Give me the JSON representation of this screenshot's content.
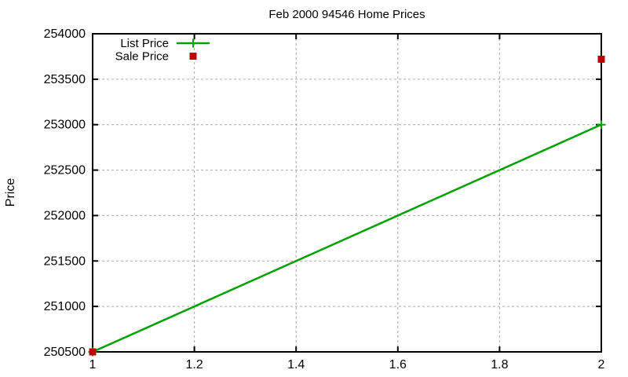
{
  "figure": {
    "background": "#ffffff"
  },
  "chart_data": {
    "type": "line",
    "title": "Feb 2000 94546 Home Prices",
    "xlabel": "",
    "ylabel": "Price",
    "xlim": [
      1,
      2
    ],
    "ylim": [
      250500,
      254000
    ],
    "xticks": {
      "values": [
        1,
        1.2,
        1.4,
        1.6,
        1.8,
        2
      ],
      "labels": [
        "1",
        "1.2",
        "1.4",
        "1.6",
        "1.8",
        "2"
      ]
    },
    "yticks": {
      "values": [
        250500,
        251000,
        251500,
        252000,
        252500,
        253000,
        253500,
        254000
      ],
      "labels": [
        "250500",
        "251000",
        "251500",
        "252000",
        "252500",
        "253000",
        "253500",
        "254000"
      ]
    },
    "grid": true,
    "legend": {
      "position": "top-left-inside",
      "entries": [
        "List Price",
        "Sale Price"
      ]
    },
    "colors": {
      "axis": "#000000",
      "grid": "#a8a8a8",
      "list_price": "#00a000",
      "sale_price": "#c00000"
    },
    "series": [
      {
        "name": "List Price",
        "type": "linespoints",
        "marker": "plus",
        "color_key": "list_price",
        "x": [
          1,
          2
        ],
        "y": [
          250500,
          253000
        ]
      },
      {
        "name": "Sale Price",
        "type": "points",
        "marker": "square",
        "color_key": "sale_price",
        "x": [
          1,
          2
        ],
        "y": [
          250500,
          253720
        ]
      }
    ]
  }
}
